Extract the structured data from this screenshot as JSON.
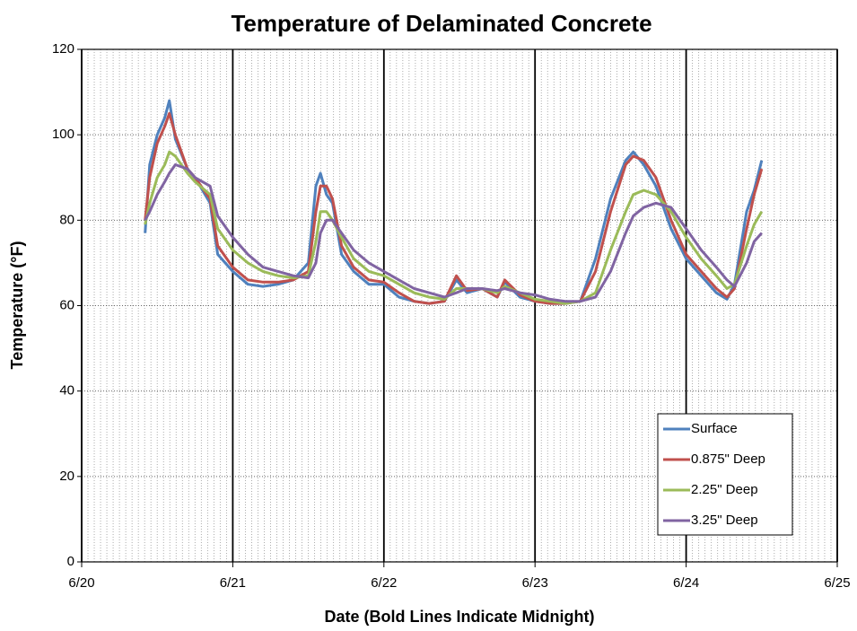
{
  "chart_data": {
    "type": "line",
    "title": "Temperature of Delaminated Concrete",
    "xlabel": "Date (Bold Lines Indicate Midnight)",
    "ylabel": "Temperature (°F)",
    "x": [
      20.42,
      20.45,
      20.5,
      20.55,
      20.58,
      20.62,
      20.7,
      20.75,
      20.85,
      20.9,
      21.0,
      21.1,
      21.2,
      21.3,
      21.4,
      21.5,
      21.55,
      21.58,
      21.62,
      21.66,
      21.72,
      21.8,
      21.9,
      22.0,
      22.1,
      22.2,
      22.3,
      22.4,
      22.48,
      22.55,
      22.65,
      22.75,
      22.8,
      22.9,
      23.0,
      23.1,
      23.2,
      23.3,
      23.4,
      23.5,
      23.6,
      23.65,
      23.72,
      23.8,
      23.9,
      24.0,
      24.1,
      24.2,
      24.27,
      24.32,
      24.4,
      24.45,
      24.5
    ],
    "series": [
      {
        "name": "Surface",
        "color": "#4f81bd",
        "values": [
          77,
          93,
          100,
          104,
          108,
          99,
          92,
          90,
          84,
          72,
          68,
          65,
          64.5,
          65,
          66,
          70,
          88,
          91,
          86,
          84,
          72,
          68,
          65,
          65,
          62,
          61,
          60.5,
          61,
          66,
          63,
          64,
          62,
          65.5,
          62,
          61,
          60.5,
          60.5,
          61,
          71,
          85,
          94,
          96,
          93,
          88,
          78,
          71,
          67,
          63,
          61.5,
          65,
          82,
          87,
          94
        ]
      },
      {
        "name": "0.875\" Deep",
        "color": "#c0504d",
        "values": [
          80,
          90,
          98,
          102,
          105,
          100,
          92,
          90,
          85,
          74,
          69,
          66,
          65.5,
          65.5,
          66,
          68,
          82,
          88,
          88,
          85,
          74,
          69,
          66,
          65.5,
          63,
          61,
          60.5,
          61,
          67,
          63.5,
          64,
          62,
          66,
          62.5,
          61,
          60.5,
          60.5,
          61,
          68,
          82,
          93,
          95,
          94,
          90,
          80,
          72,
          68,
          64,
          62,
          64,
          78,
          86,
          92
        ]
      },
      {
        "name": "2.25\" Deep",
        "color": "#9bbb59",
        "values": [
          79,
          84,
          90,
          93,
          96,
          95,
          91,
          89,
          86,
          78,
          73,
          70,
          68,
          67,
          66.5,
          67,
          75,
          82,
          82,
          80,
          76,
          71,
          68,
          67,
          65,
          63,
          62,
          61.5,
          64,
          64,
          64,
          63,
          64.5,
          63,
          61.5,
          61,
          60.5,
          61,
          63,
          73,
          82,
          86,
          87,
          86,
          82,
          76,
          71,
          67,
          64,
          65,
          74,
          79,
          82
        ]
      },
      {
        "name": "3.25\" Deep",
        "color": "#8064a2",
        "values": [
          80,
          82,
          86,
          89,
          91,
          93,
          92,
          90,
          88,
          81,
          76,
          72,
          69,
          68,
          67,
          66.5,
          70,
          77,
          80,
          80,
          77,
          73,
          70,
          68,
          66,
          64,
          63,
          62,
          63,
          64,
          64,
          63.5,
          64,
          63,
          62.5,
          61.5,
          61,
          61,
          62,
          68,
          77,
          81,
          83,
          84,
          83,
          78,
          73,
          69,
          66,
          64.5,
          70,
          75,
          77
        ]
      }
    ],
    "xlim": [
      20,
      25
    ],
    "xticks": [
      {
        "value": 20,
        "label": "6/20"
      },
      {
        "value": 21,
        "label": "6/21"
      },
      {
        "value": 22,
        "label": "6/22"
      },
      {
        "value": 23,
        "label": "6/23"
      },
      {
        "value": 24,
        "label": "6/24"
      },
      {
        "value": 25,
        "label": "6/25"
      }
    ],
    "ylim": [
      0,
      120
    ],
    "yticks": [
      0,
      20,
      40,
      60,
      80,
      100,
      120
    ],
    "grid": true,
    "minor_grid_per_day": 24,
    "legend": "lower right"
  }
}
